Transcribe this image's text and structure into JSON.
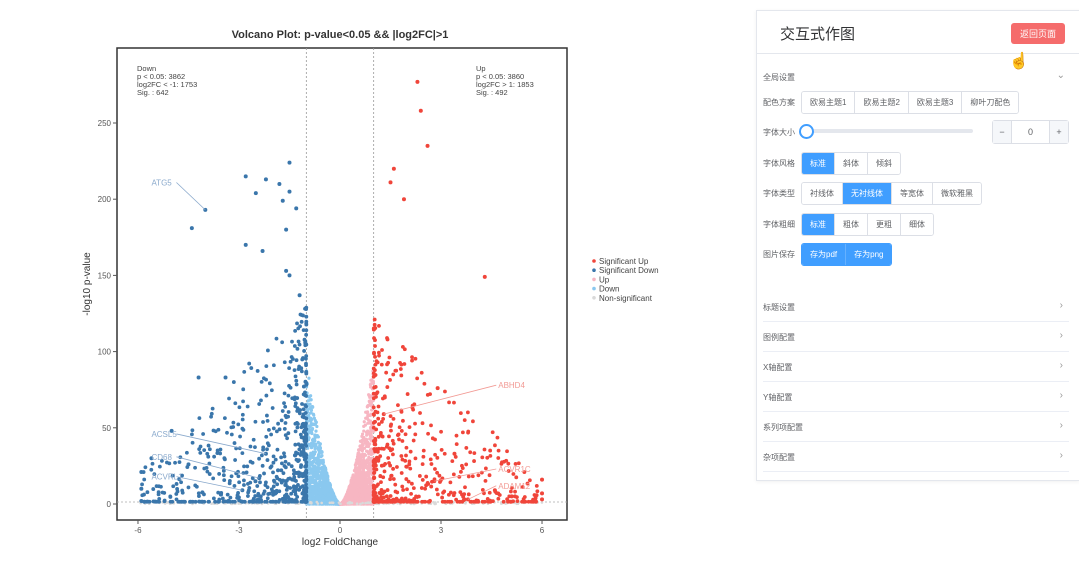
{
  "chart_data": {
    "type": "scatter",
    "title": "Volcano Plot: p-value<0.05 && |log2FC|>1",
    "xlabel": "log2 FoldChange",
    "ylabel": "-log10 p-value",
    "xlim": [
      -6.6,
      6.6
    ],
    "ylim": [
      -12,
      285
    ],
    "xticks": [
      -6,
      -3,
      0,
      3,
      6
    ],
    "yticks": [
      0,
      50,
      100,
      150,
      200,
      250
    ],
    "thresholds": {
      "fc_lines": [
        -1,
        1
      ],
      "p_line": 1.3
    },
    "grid": false,
    "legend_position": "right",
    "legend": [
      {
        "name": "Significant Up",
        "color": "#f0453a"
      },
      {
        "name": "Significant Down",
        "color": "#3a76ab"
      },
      {
        "name": "Up",
        "color": "#f7b6c2"
      },
      {
        "name": "Down",
        "color": "#8ac8ef"
      },
      {
        "name": "Non-significant",
        "color": "#d9d9d9"
      }
    ],
    "annotations": {
      "down": [
        "Down",
        "p < 0.05: 3862",
        "log2FC < -1: 1753",
        "Sig. : 642"
      ],
      "up": [
        "Up",
        "p < 0.05: 3860",
        "log2FC > 1: 1853",
        "Sig. : 492"
      ]
    },
    "labeled_genes": [
      {
        "gene": "ATG5",
        "x": -4.0,
        "y": 193,
        "group": "down",
        "label_x": -5.6,
        "label_y": 209
      },
      {
        "gene": "ACSL5",
        "x": -2.2,
        "y": 33,
        "group": "down",
        "label_x": -5.6,
        "label_y": 44
      },
      {
        "gene": "CD68",
        "x": -2.4,
        "y": 17,
        "group": "down",
        "label_x": -5.6,
        "label_y": 29
      },
      {
        "gene": "ACVRL1",
        "x": -2.9,
        "y": 9,
        "group": "down",
        "label_x": -5.6,
        "label_y": 16
      },
      {
        "gene": "ABHD4",
        "x": 1.3,
        "y": 59,
        "group": "up",
        "label_x": 4.7,
        "label_y": 76
      },
      {
        "gene": "ACVR1C",
        "x": 2.8,
        "y": 15,
        "group": "up",
        "label_x": 4.7,
        "label_y": 21
      },
      {
        "gene": "ADAM12",
        "x": 3.8,
        "y": 3,
        "group": "up",
        "label_x": 4.7,
        "label_y": 10
      }
    ],
    "outliers": {
      "sig_down": [
        [
          -1.5,
          224
        ],
        [
          -2.8,
          215
        ],
        [
          -2.2,
          213
        ],
        [
          -1.8,
          210
        ],
        [
          -1.5,
          205
        ],
        [
          -2.5,
          204
        ],
        [
          -1.3,
          194
        ],
        [
          -1.7,
          199
        ],
        [
          -4.4,
          181
        ],
        [
          -1.6,
          180
        ],
        [
          -2.8,
          170
        ],
        [
          -2.3,
          166
        ],
        [
          -1.6,
          153
        ],
        [
          -1.5,
          150
        ],
        [
          -1.2,
          137
        ],
        [
          -4.2,
          83
        ],
        [
          -3.4,
          83
        ],
        [
          -5.9,
          21
        ],
        [
          -5.6,
          30
        ],
        [
          -5.0,
          48
        ],
        [
          -4.5,
          26
        ],
        [
          -5.9,
          10
        ],
        [
          -5.9,
          2
        ]
      ],
      "sig_up": [
        [
          2.3,
          277
        ],
        [
          2.4,
          258
        ],
        [
          2.6,
          235
        ],
        [
          1.6,
          220
        ],
        [
          1.5,
          211
        ],
        [
          1.9,
          200
        ],
        [
          4.3,
          149
        ],
        [
          2.9,
          76
        ],
        [
          3.4,
          33
        ],
        [
          6.0,
          16
        ],
        [
          6.0,
          7
        ],
        [
          6.0,
          3
        ],
        [
          5.1,
          5
        ],
        [
          4.6,
          9
        ]
      ]
    }
  },
  "panel": {
    "title": "交互式作图",
    "back_button": "返回页面",
    "global_section": "全局设置",
    "color_scheme": {
      "label": "配色方案",
      "options": [
        "欧易主题1",
        "欧易主题2",
        "欧易主题3",
        "柳叶刀配色"
      ]
    },
    "font_size": {
      "label": "字体大小",
      "value": "0",
      "minus": "−",
      "plus": "+"
    },
    "font_style": {
      "label": "字体风格",
      "options": [
        "标准",
        "斜体",
        "倾斜"
      ],
      "selected": 0
    },
    "font_type": {
      "label": "字体类型",
      "options": [
        "衬线体",
        "无衬线体",
        "等宽体",
        "微软雅黑"
      ],
      "selected": 1
    },
    "font_weight": {
      "label": "字体粗细",
      "options": [
        "标准",
        "粗体",
        "更粗",
        "细体"
      ],
      "selected": 0
    },
    "save": {
      "label": "图片保存",
      "pdf": "存为pdf",
      "png": "存为png"
    },
    "sections": [
      "标题设置",
      "图例配置",
      "X轴配置",
      "Y轴配置",
      "系列项配置",
      "杂项配置"
    ]
  }
}
